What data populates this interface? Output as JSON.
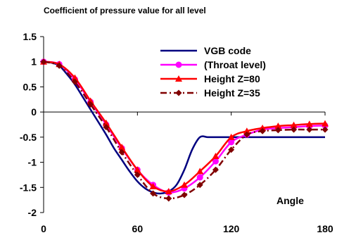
{
  "chart_data": {
    "type": "line",
    "title": "Coefficient of pressure value for all level",
    "xlabel": "",
    "ylabel": "",
    "annotation": "Angle",
    "xlim": [
      0,
      180
    ],
    "ylim": [
      -2,
      1.5
    ],
    "x_ticks": [
      0,
      60,
      120,
      180
    ],
    "y_ticks": [
      1.5,
      1,
      0.5,
      0,
      -0.5,
      -1,
      -1.5,
      -2
    ],
    "grid": false,
    "legend_position": "top-right",
    "series": [
      {
        "name": "VGB code",
        "color": "#000080",
        "marker": "none",
        "dash": "solid",
        "x": [
          0,
          5,
          10,
          15,
          20,
          25,
          30,
          35,
          40,
          45,
          50,
          55,
          60,
          65,
          70,
          75,
          80,
          85,
          90,
          95,
          100,
          105,
          110,
          120,
          130,
          140,
          150,
          160,
          170,
          180
        ],
        "y": [
          1.0,
          0.98,
          0.92,
          0.75,
          0.55,
          0.3,
          0.05,
          -0.2,
          -0.45,
          -0.72,
          -0.95,
          -1.18,
          -1.38,
          -1.52,
          -1.6,
          -1.62,
          -1.58,
          -1.45,
          -1.15,
          -0.75,
          -0.5,
          -0.5,
          -0.5,
          -0.5,
          -0.5,
          -0.5,
          -0.5,
          -0.5,
          -0.5,
          -0.5
        ]
      },
      {
        "name": "(Throat level)",
        "color": "#ff00ff",
        "marker": "circle",
        "dash": "solid",
        "x": [
          0,
          10,
          20,
          30,
          40,
          50,
          60,
          70,
          80,
          90,
          100,
          110,
          120,
          130,
          140,
          150,
          160,
          170,
          180
        ],
        "y": [
          1.0,
          0.95,
          0.65,
          0.2,
          -0.25,
          -0.72,
          -1.15,
          -1.45,
          -1.6,
          -1.52,
          -1.3,
          -0.98,
          -0.6,
          -0.45,
          -0.35,
          -0.32,
          -0.3,
          -0.28,
          -0.27
        ]
      },
      {
        "name": "Height Z=80",
        "color": "#ff0000",
        "marker": "triangle",
        "dash": "solid",
        "x": [
          0,
          10,
          20,
          30,
          40,
          50,
          60,
          70,
          80,
          90,
          100,
          110,
          120,
          130,
          140,
          150,
          160,
          170,
          180
        ],
        "y": [
          1.0,
          0.95,
          0.68,
          0.22,
          -0.22,
          -0.7,
          -1.15,
          -1.48,
          -1.58,
          -1.45,
          -1.18,
          -0.88,
          -0.5,
          -0.38,
          -0.32,
          -0.28,
          -0.26,
          -0.24,
          -0.23
        ]
      },
      {
        "name": "Height Z=35",
        "color": "#800000",
        "marker": "diamond",
        "dash": "dashdot",
        "x": [
          0,
          10,
          20,
          30,
          40,
          50,
          60,
          70,
          80,
          90,
          100,
          110,
          120,
          130,
          140,
          150,
          160,
          170,
          180
        ],
        "y": [
          1.0,
          0.92,
          0.6,
          0.15,
          -0.3,
          -0.8,
          -1.25,
          -1.62,
          -1.72,
          -1.65,
          -1.45,
          -1.15,
          -0.75,
          -0.45,
          -0.38,
          -0.36,
          -0.35,
          -0.35,
          -0.35
        ]
      }
    ]
  }
}
